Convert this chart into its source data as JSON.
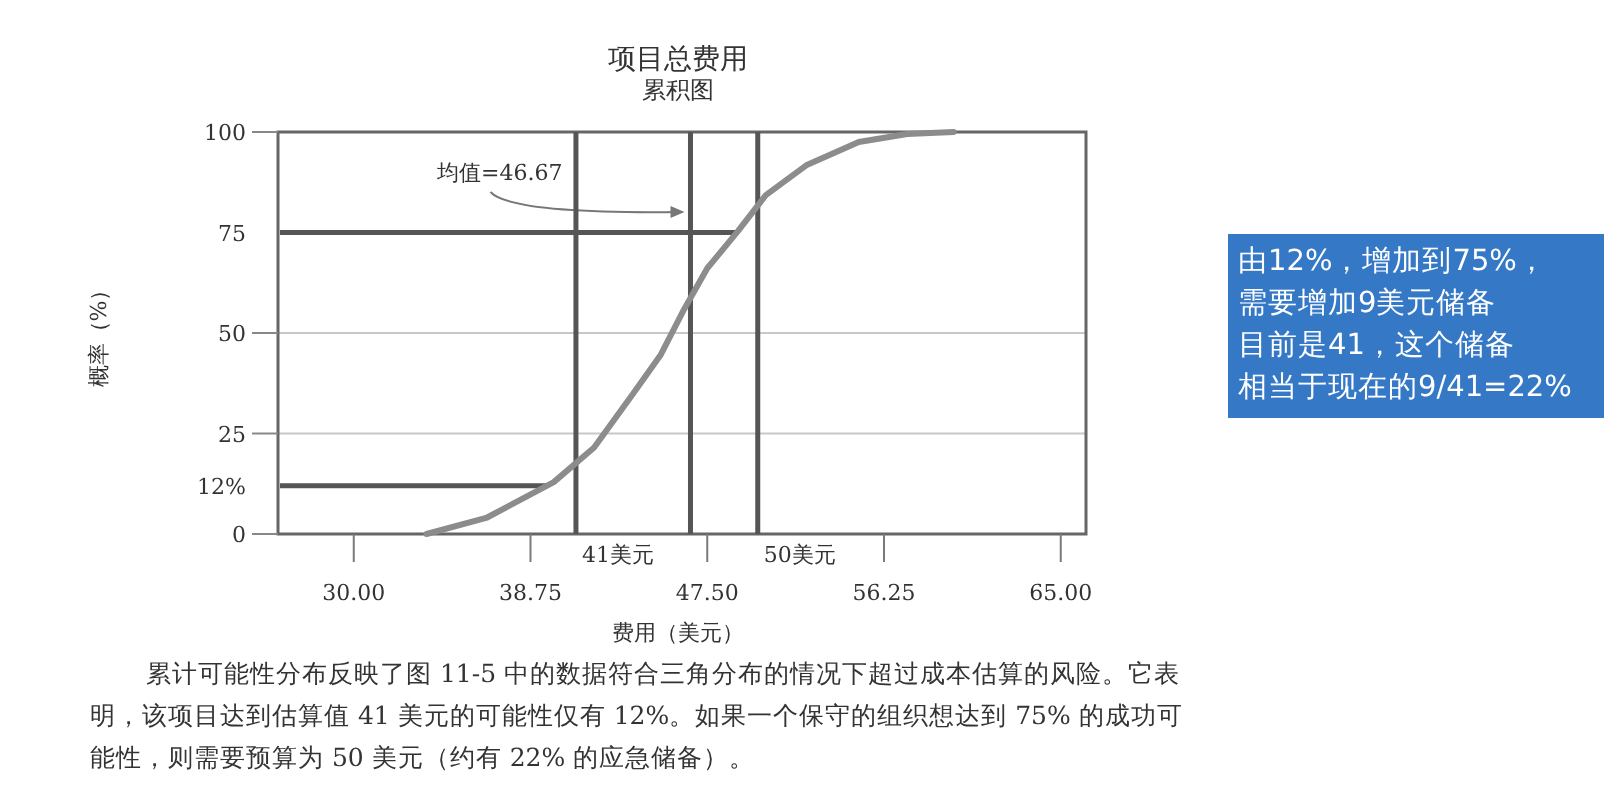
{
  "chart_data": {
    "type": "line",
    "title": "项目总费用",
    "subtitle": "累积图",
    "xlabel": "费用（美元）",
    "ylabel": "概率（%）",
    "x": [
      33.6,
      36.6,
      39.9,
      41.9,
      43.8,
      45.2,
      46.3,
      47.5,
      49.0,
      50.4,
      52.4,
      55.0,
      57.4,
      59.7
    ],
    "series": [
      {
        "color": "#8c8c8c",
        "values": [
          0,
          4.1,
          12.9,
          21.5,
          34.7,
          44.6,
          55.4,
          66.1,
          75.2,
          84.3,
          91.7,
          97.5,
          99.5,
          100
        ]
      }
    ],
    "xlim": [
      26.25,
      66.25
    ],
    "xticks": [
      {
        "value": 30,
        "label": "30.00"
      },
      {
        "value": 38.75,
        "label": "38.75"
      },
      {
        "value": 47.5,
        "label": "47.50"
      },
      {
        "value": 56.25,
        "label": "56.25"
      },
      {
        "value": 65,
        "label": "65.00"
      }
    ],
    "ylim": [
      0,
      100
    ],
    "yticks": [
      0,
      {
        "value": 12,
        "label": "12%"
      },
      25,
      50,
      75,
      100
    ],
    "grid": "y",
    "ref_lines": [
      {
        "axis": "x",
        "value": 46.67,
        "label": "均值=46.67",
        "color": "#555555"
      },
      {
        "axis": "x",
        "value": 41,
        "label": "41美元",
        "color": "#555555"
      },
      {
        "axis": "x",
        "value": 50,
        "label": "50美元",
        "color": "#555555"
      },
      {
        "axis": "y",
        "value": 12,
        "color": "#555555"
      },
      {
        "axis": "y",
        "value": 75,
        "color": "#555555"
      }
    ],
    "annotations": [
      "累计可能性分布反映了图 11-5 中的数据符合三角分布的情况下超过成本估算的风险。它表明，该项目达到估算值 41 美元的可能性仅有 12%。如果一个保守的组织想达到 75% 的成功可能性，则需要预算为 50 美元（约有 22% 的应急储备）。",
      "由12%，增加到75%，",
      "需要增加9美元储备",
      "目前是41，这个储备",
      "相当于现在的9/41=22%"
    ]
  }
}
